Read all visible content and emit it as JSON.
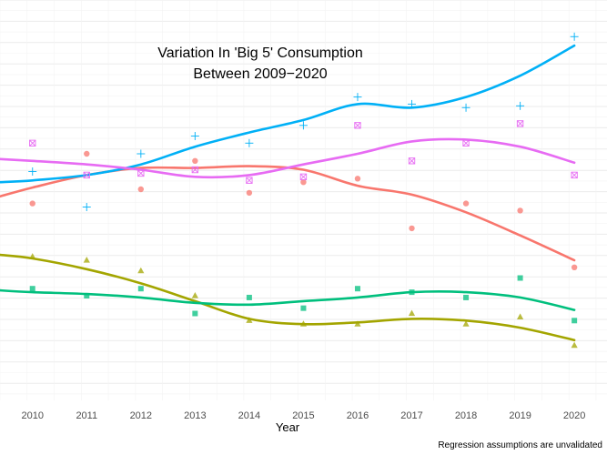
{
  "chart_data": {
    "type": "scatter",
    "title_lines": [
      "Variation In 'Big 5' Consumption",
      "Between 2009−2020"
    ],
    "xlabel": "Year",
    "ylabel": "",
    "caption": "Regression assumptions are unvalidated",
    "x": [
      2010,
      2011,
      2012,
      2013,
      2014,
      2015,
      2016,
      2017,
      2018,
      2019,
      2020
    ],
    "x_tick_labels": [
      "2010",
      "2011",
      "2012",
      "2013",
      "2014",
      "2015",
      "2016",
      "2017",
      "2018",
      "2019",
      "2020"
    ],
    "xlim": [
      2009.4,
      2020.3
    ],
    "ylim": [
      0,
      100
    ],
    "grid": true,
    "legend": "none",
    "series": [
      {
        "color": "#F8766D",
        "marker": "circle",
        "points": [
          [
            2010,
            56
          ],
          [
            2011,
            70
          ],
          [
            2012,
            60
          ],
          [
            2013,
            68
          ],
          [
            2014,
            59
          ],
          [
            2015,
            62
          ],
          [
            2016,
            63
          ],
          [
            2017,
            49
          ],
          [
            2018,
            56
          ],
          [
            2019,
            54
          ],
          [
            2020,
            38
          ]
        ],
        "trend": [
          [
            2009.4,
            58
          ],
          [
            2010,
            60.5
          ],
          [
            2011,
            64
          ],
          [
            2012,
            66
          ],
          [
            2013,
            66
          ],
          [
            2014,
            66.5
          ],
          [
            2015,
            65.5
          ],
          [
            2016,
            61
          ],
          [
            2017,
            58.5
          ],
          [
            2018,
            53.5
          ],
          [
            2019,
            47
          ],
          [
            2020,
            40
          ]
        ]
      },
      {
        "color": "#A3A500",
        "marker": "triangle",
        "points": [
          [
            2010,
            41
          ],
          [
            2011,
            40
          ],
          [
            2012,
            37
          ],
          [
            2013,
            30
          ],
          [
            2014,
            23
          ],
          [
            2015,
            22
          ],
          [
            2016,
            22
          ],
          [
            2017,
            25
          ],
          [
            2018,
            22
          ],
          [
            2019,
            24
          ],
          [
            2020,
            16
          ]
        ],
        "trend": [
          [
            2009.4,
            41.5
          ],
          [
            2010,
            40.5
          ],
          [
            2011,
            37.5
          ],
          [
            2012,
            33.5
          ],
          [
            2013,
            28.5
          ],
          [
            2014,
            23.5
          ],
          [
            2015,
            22
          ],
          [
            2016,
            22.5
          ],
          [
            2017,
            23.5
          ],
          [
            2018,
            23
          ],
          [
            2019,
            21
          ],
          [
            2020,
            17.5
          ]
        ]
      },
      {
        "color": "#00BF7D",
        "marker": "square",
        "points": [
          [
            2010,
            32
          ],
          [
            2011,
            30
          ],
          [
            2012,
            32
          ],
          [
            2013,
            25
          ],
          [
            2014,
            29.5
          ],
          [
            2015,
            26.5
          ],
          [
            2016,
            32
          ],
          [
            2017,
            31
          ],
          [
            2018,
            29.5
          ],
          [
            2019,
            35
          ],
          [
            2020,
            23
          ]
        ],
        "trend": [
          [
            2009.4,
            31.5
          ],
          [
            2010,
            31
          ],
          [
            2011,
            30.5
          ],
          [
            2012,
            29.5
          ],
          [
            2013,
            28
          ],
          [
            2014,
            27.5
          ],
          [
            2015,
            28.5
          ],
          [
            2016,
            29.5
          ],
          [
            2017,
            31
          ],
          [
            2018,
            31
          ],
          [
            2019,
            29.5
          ],
          [
            2020,
            26
          ]
        ]
      },
      {
        "color": "#00B0F6",
        "marker": "plus",
        "points": [
          [
            2010,
            65
          ],
          [
            2011,
            55
          ],
          [
            2012,
            70
          ],
          [
            2013,
            75
          ],
          [
            2014,
            73
          ],
          [
            2015,
            78
          ],
          [
            2016,
            86
          ],
          [
            2017,
            84
          ],
          [
            2018,
            83
          ],
          [
            2019,
            83.5
          ],
          [
            2020,
            103
          ]
        ],
        "trend": [
          [
            2009.4,
            62
          ],
          [
            2010,
            62.5
          ],
          [
            2011,
            64
          ],
          [
            2012,
            67
          ],
          [
            2013,
            72
          ],
          [
            2014,
            76
          ],
          [
            2015,
            79.5
          ],
          [
            2016,
            84
          ],
          [
            2017,
            83
          ],
          [
            2018,
            86
          ],
          [
            2019,
            92
          ],
          [
            2020,
            100.5
          ]
        ]
      },
      {
        "color": "#E76BF3",
        "marker": "boxcross",
        "points": [
          [
            2010,
            73
          ],
          [
            2011,
            64
          ],
          [
            2012,
            64.5
          ],
          [
            2013,
            65.5
          ],
          [
            2014,
            62.5
          ],
          [
            2015,
            63.5
          ],
          [
            2016,
            78
          ],
          [
            2017,
            68
          ],
          [
            2018,
            73
          ],
          [
            2019,
            78.5
          ],
          [
            2020,
            64
          ]
        ],
        "trend": [
          [
            2009.4,
            68.5
          ],
          [
            2010,
            68
          ],
          [
            2011,
            67
          ],
          [
            2012,
            65.5
          ],
          [
            2013,
            63.5
          ],
          [
            2014,
            64
          ],
          [
            2015,
            67
          ],
          [
            2016,
            70
          ],
          [
            2017,
            73.5
          ],
          [
            2018,
            74
          ],
          [
            2019,
            72
          ],
          [
            2020,
            67.5
          ]
        ]
      }
    ]
  }
}
